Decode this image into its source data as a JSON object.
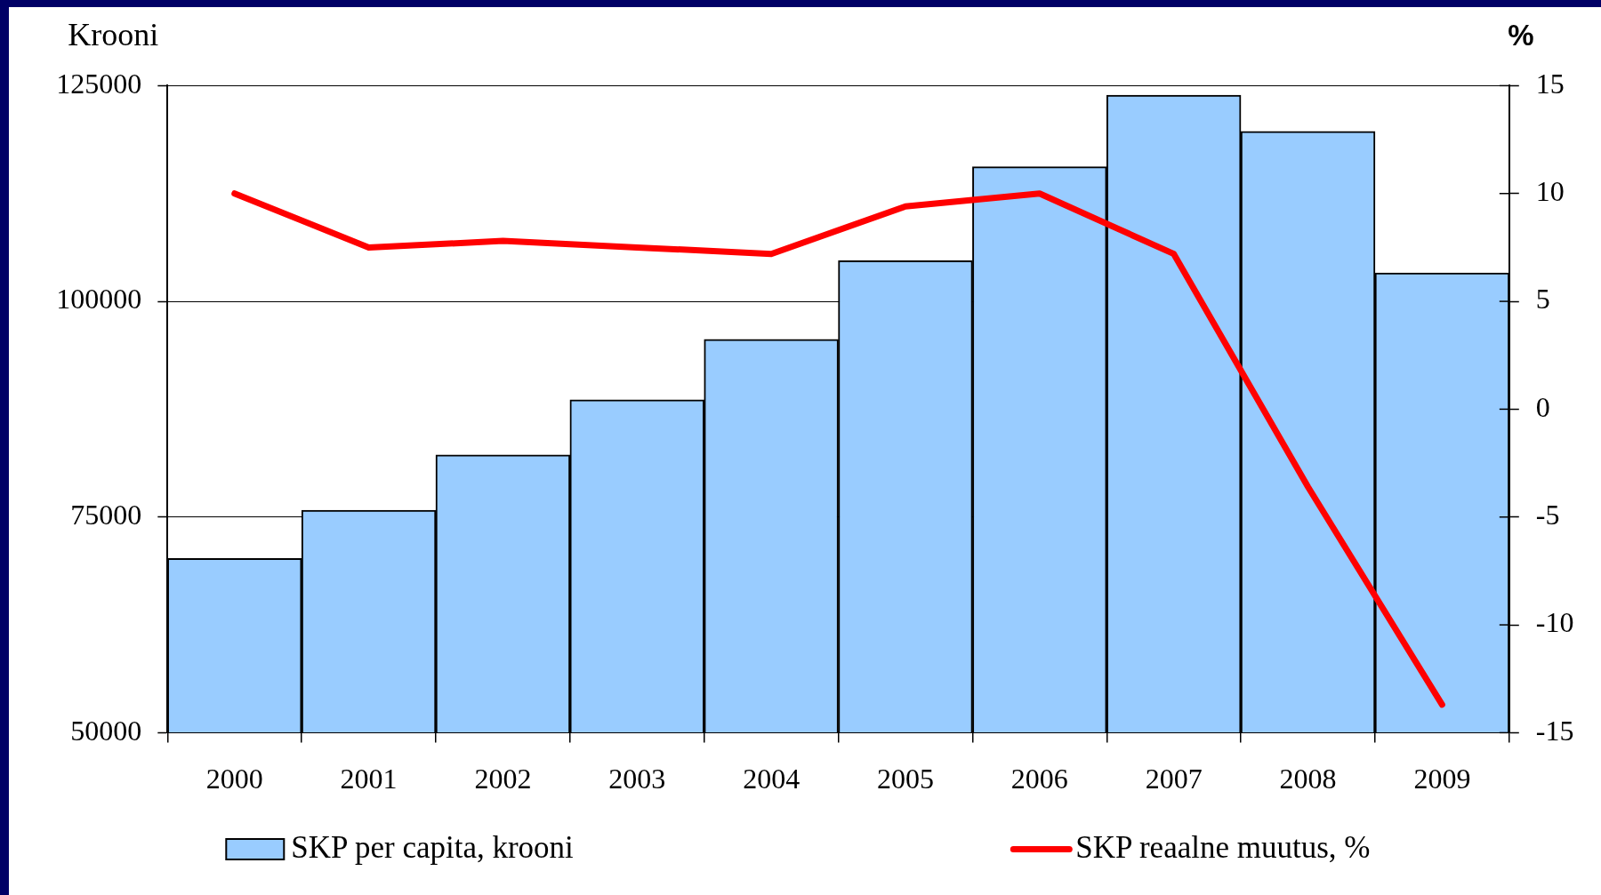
{
  "chart_data": {
    "type": "bar",
    "ylabel": "Krooni",
    "y2label": "%",
    "categories": [
      "2000",
      "2001",
      "2002",
      "2003",
      "2004",
      "2005",
      "2006",
      "2007",
      "2008",
      "2009"
    ],
    "series": [
      {
        "name": "SKP per capita, krooni",
        "type": "bar",
        "color": "#99ccff",
        "values": [
          70200,
          75800,
          82200,
          88600,
          95600,
          104700,
          115600,
          123900,
          119700,
          103300
        ]
      },
      {
        "name": "SKP reaalne muutus, %",
        "type": "line",
        "axis": "y2",
        "color": "#ff0000",
        "values": [
          10.0,
          7.5,
          7.8,
          7.5,
          7.2,
          9.4,
          10.0,
          7.2,
          -3.6,
          -13.7
        ]
      }
    ],
    "ylim": [
      50000,
      125000
    ],
    "yticks": [
      50000,
      75000,
      100000,
      125000
    ],
    "y2lim": [
      -15,
      15
    ],
    "y2ticks": [
      -15,
      -10,
      -5,
      0,
      5,
      10,
      15
    ],
    "grid": "y",
    "legend": "bottom",
    "marker": "none",
    "line_style": "solid"
  }
}
